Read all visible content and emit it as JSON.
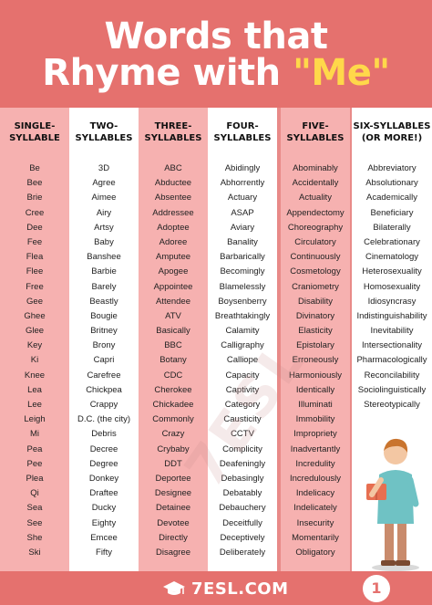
{
  "header": {
    "title_line1": "Words that",
    "title_line2_prefix": "Rhyme with",
    "title_word": "\"Me\""
  },
  "columns": [
    {
      "heading_line1": "SINGLE-",
      "heading_line2": "SYLLABLE",
      "words": [
        "Be",
        "Bee",
        "Brie",
        "Cree",
        "Dee",
        "Fee",
        "Flea",
        "Flee",
        "Free",
        "Gee",
        "Ghee",
        "Glee",
        "Key",
        "Ki",
        "Knee",
        "Lea",
        "Lee",
        "Leigh",
        "Mi",
        "Pea",
        "Pee",
        "Plea",
        "Qi",
        "Sea",
        "See",
        "She",
        "Ski"
      ]
    },
    {
      "heading_line1": "TWO-",
      "heading_line2": "SYLLABLES",
      "words": [
        "3D",
        "Agree",
        "Aimee",
        "Airy",
        "Artsy",
        "Baby",
        "Banshee",
        "Barbie",
        "Barely",
        "Beastly",
        "Bougie",
        "Britney",
        "Brony",
        "Capri",
        "Carefree",
        "Chickpea",
        "Crappy",
        "D.C. (the city)",
        "Debris",
        "Decree",
        "Degree",
        "Donkey",
        "Draftee",
        "Ducky",
        "Eighty",
        "Emcee",
        "Fifty"
      ]
    },
    {
      "heading_line1": "THREE-",
      "heading_line2": "SYLLABLES",
      "words": [
        "ABC",
        "Abductee",
        "Absentee",
        "Addressee",
        "Adoptee",
        "Adoree",
        "Amputee",
        "Apogee",
        "Appointee",
        "Attendee",
        "ATV",
        "Basically",
        "BBC",
        "Botany",
        "CDC",
        "Cherokee",
        "Chickadee",
        "Commonly",
        "Crazy",
        "Crybaby",
        "DDT",
        "Deportee",
        "Designee",
        "Detainee",
        "Devotee",
        "Directly",
        "Disagree"
      ]
    },
    {
      "heading_line1": "FOUR-",
      "heading_line2": "SYLLABLES",
      "words": [
        "Abidingly",
        "Abhorrently",
        "Actuary",
        "ASAP",
        "Aviary",
        "Banality",
        "Barbarically",
        "Becomingly",
        "Blamelessly",
        "Boysenberry",
        "Breathtakingly",
        "Calamity",
        "Calligraphy",
        "Calliope",
        "Capacity",
        "Captivity",
        "Category",
        "Causticity",
        "CCTV",
        "Complicity",
        "Deafeningly",
        "Debasingly",
        "Debatably",
        "Debauchery",
        "Deceitfully",
        "Deceptively",
        "Deliberately"
      ]
    },
    {
      "heading_line1": "FIVE-",
      "heading_line2": "SYLLABLES",
      "words": [
        "Abominably",
        "Accidentally",
        "Actuality",
        "Appendectomy",
        "Choreography",
        "Circulatory",
        "Continuously",
        "Cosmetology",
        "Craniometry",
        "Disability",
        "Divinatory",
        "Elasticity",
        "Epistolary",
        "Erroneously",
        "Harmoniously",
        "Identically",
        "Illuminati",
        "Immobility",
        "Impropriety",
        "Inadvertantly",
        "Incredulity",
        "Incredulously",
        "Indelicacy",
        "Indelicately",
        "Insecurity",
        "Momentarily",
        "Obligatory"
      ]
    },
    {
      "heading_line1": "SIX-SYLLABLES",
      "heading_line2": "(OR MORE!)",
      "words": [
        "Abbreviatory",
        "Absolutionary",
        "Academically",
        "Beneficiary",
        "Bilaterally",
        "Celebrationary",
        "Cinematology",
        "Heterosexuality",
        "Homosexuality",
        "Idiosyncrasy",
        "Indistinguishability",
        "Inevitability",
        "Intersectionality",
        "Pharmacologically",
        "Reconcilability",
        "Sociolinguistically",
        "Stereotypically"
      ]
    }
  ],
  "footer": {
    "logo_text": "7ESL.COM",
    "page_number": "1"
  },
  "colors": {
    "header_bg": "#e5716e",
    "highlight": "#ffd84a",
    "column_pink": "#f6b1b0",
    "column_white": "#ffffff"
  }
}
